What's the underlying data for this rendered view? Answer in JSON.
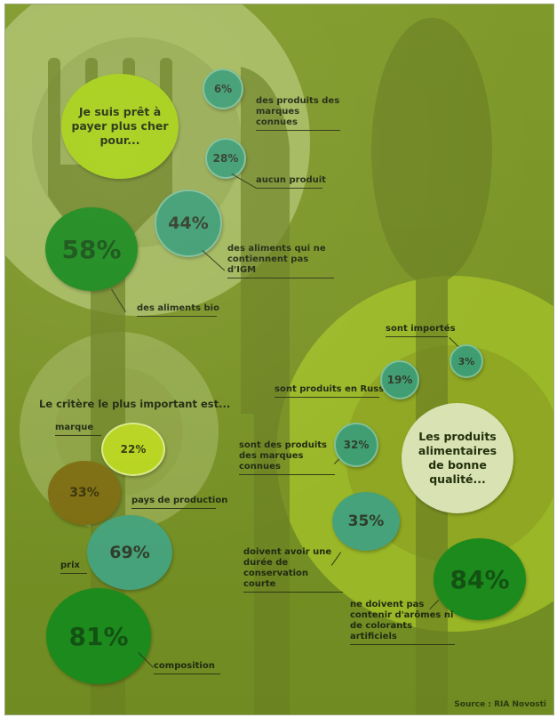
{
  "section1": {
    "title": "Je suis prêt à payer plus cher pour...",
    "items": [
      {
        "value": "6%",
        "label": "des produits des marques connues"
      },
      {
        "value": "28%",
        "label": "aucun produit"
      },
      {
        "value": "44%",
        "label": "des aliments qui ne contiennent pas d'IGM"
      },
      {
        "value": "58%",
        "label": "des aliments bio"
      }
    ]
  },
  "section2": {
    "title": "Le critère le plus important est...",
    "items": [
      {
        "value": "22%",
        "label": "marque"
      },
      {
        "value": "33%",
        "label": "pays de production"
      },
      {
        "value": "69%",
        "label": "prix"
      },
      {
        "value": "81%",
        "label": "composition"
      }
    ]
  },
  "section3": {
    "title": "Les produits alimentaires de bonne qualité...",
    "items": [
      {
        "value": "3%",
        "label": "sont importés"
      },
      {
        "value": "19%",
        "label": "sont produits en Russie"
      },
      {
        "value": "32%",
        "label": "sont des produits des marques connues"
      },
      {
        "value": "35%",
        "label": "doivent avoir une durée de conservation courte"
      },
      {
        "value": "84%",
        "label": "ne doivent pas contenir d'arômes ni de colorants artificiels"
      }
    ]
  },
  "source": "Source : RIA Novosti"
}
